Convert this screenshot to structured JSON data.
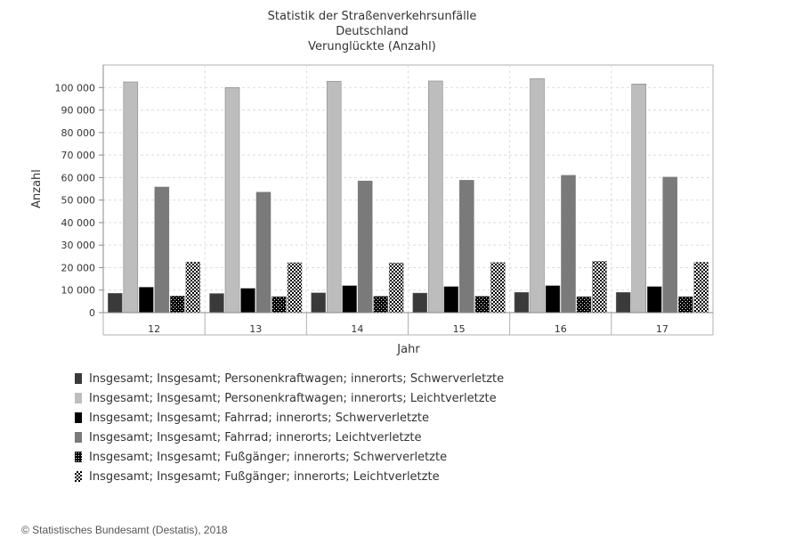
{
  "chart_data": {
    "type": "bar",
    "title": [
      "Statistik der Straßenverkehrsunfälle",
      "Deutschland",
      "Verunglückte (Anzahl)"
    ],
    "xlabel": "Jahr",
    "ylabel": "Anzahl",
    "categories": [
      "12",
      "13",
      "14",
      "15",
      "16",
      "17"
    ],
    "ylim": [
      0,
      110000
    ],
    "yticks": [
      {
        "value": 0,
        "label": "0"
      },
      {
        "value": 10000,
        "label": "10 000"
      },
      {
        "value": 20000,
        "label": "20 000"
      },
      {
        "value": 30000,
        "label": "30 000"
      },
      {
        "value": 40000,
        "label": "40 000"
      },
      {
        "value": 50000,
        "label": "50 000"
      },
      {
        "value": 60000,
        "label": "60 000"
      },
      {
        "value": 70000,
        "label": "70 000"
      },
      {
        "value": 80000,
        "label": "80 000"
      },
      {
        "value": 90000,
        "label": "90 000"
      },
      {
        "value": 100000,
        "label": "100 000"
      }
    ],
    "grid": true,
    "legend_position": "bottom",
    "series": [
      {
        "name": "Insgesamt; Insgesamt; Personenkraftwagen; innerorts; Schwerverletzte",
        "color": "#3a3a3a",
        "pattern": "solid",
        "values": [
          8600,
          8500,
          8800,
          8700,
          9000,
          9000
        ]
      },
      {
        "name": "Insgesamt; Insgesamt; Personenkraftwagen; innerorts; Leichtverletzte",
        "color": "#bdbdbd",
        "pattern": "solid",
        "values": [
          102500,
          100000,
          102800,
          102900,
          104000,
          101600
        ]
      },
      {
        "name": "Insgesamt; Insgesamt; Fahrrad; innerorts; Schwerverletzte",
        "color": "#000000",
        "pattern": "solid",
        "values": [
          11300,
          10800,
          12000,
          11600,
          12000,
          11600
        ]
      },
      {
        "name": "Insgesamt; Insgesamt; Fahrrad; innerorts; Leichtverletzte",
        "color": "#7a7a7a",
        "pattern": "solid",
        "values": [
          55800,
          53500,
          58500,
          58800,
          61000,
          60200
        ]
      },
      {
        "name": "Insgesamt; Insgesamt; Fußgänger; innerorts; Schwerverletzte",
        "color": "#000000",
        "pattern": "dots",
        "values": [
          7400,
          7100,
          7300,
          7300,
          7100,
          7100
        ]
      },
      {
        "name": "Insgesamt; Insgesamt; Fußgänger; innerorts; Leichtverletzte",
        "color": "#000000",
        "pattern": "checker",
        "values": [
          22500,
          22200,
          22100,
          22300,
          22800,
          22400
        ]
      }
    ]
  },
  "footer": {
    "copyright": "© Statistisches Bundesamt (Destatis), 2018"
  }
}
